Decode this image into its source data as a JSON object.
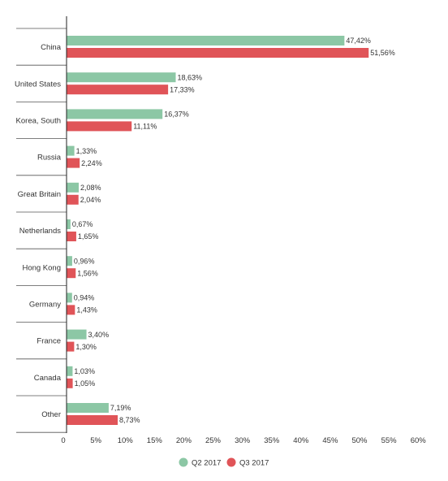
{
  "colors": {
    "q2": "#8cc7a5",
    "q3": "#e05458",
    "axis": "#222222",
    "separator": "#555555",
    "text": "#333333"
  },
  "chart_data": {
    "type": "bar",
    "orientation": "horizontal",
    "title": "",
    "xlabel": "",
    "ylabel": "",
    "xlim": [
      0,
      60
    ],
    "grid": false,
    "legend_position": "bottom",
    "categories": [
      "China",
      "United States",
      "Korea, South",
      "Russia",
      "Great Britain",
      "Netherlands",
      "Hong Kong",
      "Germany",
      "France",
      "Canada",
      "Other"
    ],
    "series": [
      {
        "name": "Q2 2017",
        "values": [
          47.42,
          18.63,
          16.37,
          1.33,
          2.08,
          0.67,
          0.96,
          0.94,
          3.4,
          1.03,
          7.19
        ],
        "labels": [
          "47,42%",
          "18,63%",
          "16,37%",
          "1,33%",
          "2,08%",
          "0,67%",
          "0,96%",
          "0,94%",
          "3,40%",
          "1,03%",
          "7,19%"
        ]
      },
      {
        "name": "Q3 2017",
        "values": [
          51.56,
          17.33,
          11.11,
          2.24,
          2.04,
          1.65,
          1.56,
          1.43,
          1.3,
          1.05,
          8.73
        ],
        "labels": [
          "51,56%",
          "17,33%",
          "11,11%",
          "2,24%",
          "2,04%",
          "1,65%",
          "1,56%",
          "1,43%",
          "1,30%",
          "1,05%",
          "8,73%"
        ]
      }
    ],
    "x_ticks": [
      0,
      5,
      10,
      15,
      20,
      25,
      30,
      35,
      40,
      45,
      50,
      55,
      60
    ],
    "x_tick_labels": [
      "0",
      "5%",
      "10%",
      "15%",
      "20%",
      "25%",
      "30%",
      "35%",
      "40%",
      "45%",
      "50%",
      "55%",
      "60%"
    ]
  }
}
